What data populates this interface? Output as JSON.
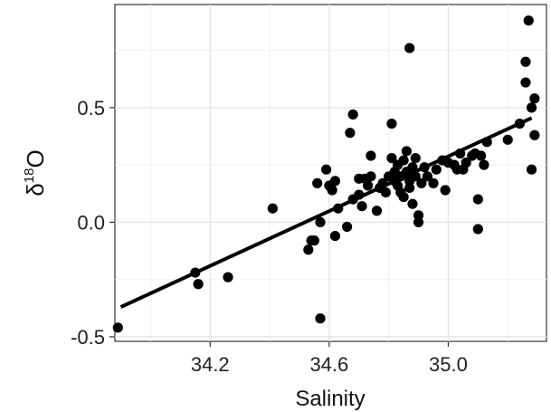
{
  "chart_data": {
    "type": "scatter",
    "xlabel": "Salinity",
    "ylabel": {
      "prefix": "δ",
      "superscript": "18",
      "suffix": "O"
    },
    "xlim": [
      33.88,
      35.33
    ],
    "ylim": [
      -0.52,
      0.95
    ],
    "x_ticks": [
      34.2,
      34.6,
      35.0
    ],
    "x_tick_labels": [
      "34.2",
      "34.6",
      "35.0"
    ],
    "y_ticks": [
      -0.5,
      0.0,
      0.5
    ],
    "y_tick_labels": [
      "-0.5",
      "0.0",
      "0.5"
    ],
    "grid": true,
    "point_color": "#000000",
    "fit_line": {
      "x": [
        33.9,
        35.28
      ],
      "y": [
        -0.37,
        0.455
      ],
      "color": "#000000"
    },
    "points": [
      {
        "x": 33.89,
        "y": -0.46
      },
      {
        "x": 34.15,
        "y": -0.22
      },
      {
        "x": 34.16,
        "y": -0.27
      },
      {
        "x": 34.26,
        "y": -0.24
      },
      {
        "x": 34.41,
        "y": 0.06
      },
      {
        "x": 34.53,
        "y": -0.12
      },
      {
        "x": 34.54,
        "y": -0.08
      },
      {
        "x": 34.55,
        "y": -0.08
      },
      {
        "x": 34.56,
        "y": 0.17
      },
      {
        "x": 34.57,
        "y": 0.0
      },
      {
        "x": 34.57,
        "y": -0.42
      },
      {
        "x": 34.59,
        "y": 0.23
      },
      {
        "x": 34.6,
        "y": 0.16
      },
      {
        "x": 34.61,
        "y": 0.14
      },
      {
        "x": 34.62,
        "y": 0.18
      },
      {
        "x": 34.62,
        "y": -0.06
      },
      {
        "x": 34.63,
        "y": 0.06
      },
      {
        "x": 34.66,
        "y": -0.02
      },
      {
        "x": 34.67,
        "y": 0.39
      },
      {
        "x": 34.68,
        "y": 0.47
      },
      {
        "x": 34.68,
        "y": 0.1
      },
      {
        "x": 34.7,
        "y": 0.12
      },
      {
        "x": 34.7,
        "y": 0.19
      },
      {
        "x": 34.71,
        "y": 0.07
      },
      {
        "x": 34.72,
        "y": 0.19
      },
      {
        "x": 34.73,
        "y": 0.16
      },
      {
        "x": 34.74,
        "y": 0.2
      },
      {
        "x": 34.74,
        "y": 0.29
      },
      {
        "x": 34.76,
        "y": 0.05
      },
      {
        "x": 34.77,
        "y": 0.15
      },
      {
        "x": 34.78,
        "y": 0.17
      },
      {
        "x": 34.79,
        "y": 0.13
      },
      {
        "x": 34.8,
        "y": 0.2
      },
      {
        "x": 34.81,
        "y": 0.28
      },
      {
        "x": 34.81,
        "y": 0.43
      },
      {
        "x": 34.82,
        "y": 0.22
      },
      {
        "x": 34.82,
        "y": 0.18
      },
      {
        "x": 34.83,
        "y": 0.16
      },
      {
        "x": 34.83,
        "y": 0.25
      },
      {
        "x": 34.84,
        "y": 0.2
      },
      {
        "x": 34.84,
        "y": 0.13
      },
      {
        "x": 34.85,
        "y": 0.11
      },
      {
        "x": 34.85,
        "y": 0.27
      },
      {
        "x": 34.86,
        "y": 0.22
      },
      {
        "x": 34.86,
        "y": 0.31
      },
      {
        "x": 34.87,
        "y": 0.18
      },
      {
        "x": 34.87,
        "y": 0.76
      },
      {
        "x": 34.87,
        "y": 0.15
      },
      {
        "x": 34.88,
        "y": 0.24
      },
      {
        "x": 34.88,
        "y": 0.08
      },
      {
        "x": 34.89,
        "y": 0.28
      },
      {
        "x": 34.89,
        "y": 0.2
      },
      {
        "x": 34.9,
        "y": 0.0
      },
      {
        "x": 34.9,
        "y": 0.03
      },
      {
        "x": 34.91,
        "y": 0.17
      },
      {
        "x": 34.92,
        "y": 0.24
      },
      {
        "x": 34.93,
        "y": 0.2
      },
      {
        "x": 34.95,
        "y": 0.17
      },
      {
        "x": 34.96,
        "y": 0.23
      },
      {
        "x": 34.98,
        "y": 0.27
      },
      {
        "x": 34.99,
        "y": 0.14
      },
      {
        "x": 35.0,
        "y": 0.26
      },
      {
        "x": 35.02,
        "y": 0.25
      },
      {
        "x": 35.03,
        "y": 0.23
      },
      {
        "x": 35.04,
        "y": 0.3
      },
      {
        "x": 35.05,
        "y": 0.23
      },
      {
        "x": 35.06,
        "y": 0.26
      },
      {
        "x": 35.08,
        "y": 0.29
      },
      {
        "x": 35.09,
        "y": 0.3
      },
      {
        "x": 35.1,
        "y": 0.1
      },
      {
        "x": 35.1,
        "y": -0.03
      },
      {
        "x": 35.11,
        "y": 0.29
      },
      {
        "x": 35.12,
        "y": 0.25
      },
      {
        "x": 35.13,
        "y": 0.35
      },
      {
        "x": 35.2,
        "y": 0.36
      },
      {
        "x": 35.24,
        "y": 0.43
      },
      {
        "x": 35.26,
        "y": 0.7
      },
      {
        "x": 35.26,
        "y": 0.61
      },
      {
        "x": 35.27,
        "y": 0.88
      },
      {
        "x": 35.28,
        "y": 0.5
      },
      {
        "x": 35.28,
        "y": 0.23
      },
      {
        "x": 35.29,
        "y": 0.54
      },
      {
        "x": 35.29,
        "y": 0.38
      }
    ]
  }
}
